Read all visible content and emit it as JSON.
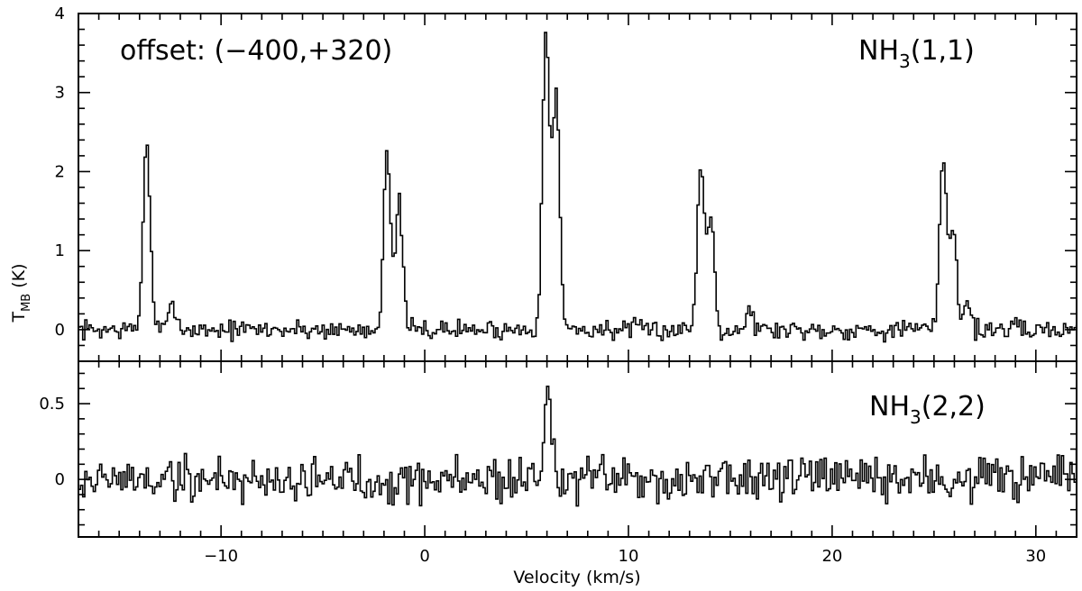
{
  "chart_data": [
    {
      "type": "line",
      "step": true,
      "panel": "top",
      "x_range": [
        -17,
        32
      ],
      "ylim": [
        -0.4,
        4.0
      ],
      "ylabel": "T",
      "ylabel_sub": "MB",
      "ylabel_unit": "(K)",
      "yticks": [
        0,
        1,
        2,
        3,
        4
      ],
      "ytick_labels": [
        "0",
        "1",
        "2",
        "3",
        "4"
      ],
      "annotations": {
        "offset": "offset: (−400,+320)",
        "line_main": "NH",
        "line_sub": "3",
        "line_quant": "(1,1)"
      },
      "noise_rms": 0.09,
      "peaks": [
        {
          "v": -13.7,
          "t": 2.4
        },
        {
          "v": -12.4,
          "t": 0.35
        },
        {
          "v": -1.9,
          "t": 2.3
        },
        {
          "v": -1.3,
          "t": 1.6
        },
        {
          "v": 5.9,
          "t": 3.85
        },
        {
          "v": 6.4,
          "t": 3.0
        },
        {
          "v": 13.5,
          "t": 2.1
        },
        {
          "v": 14.0,
          "t": 1.45
        },
        {
          "v": 15.9,
          "t": 0.25
        },
        {
          "v": 25.4,
          "t": 2.2
        },
        {
          "v": 25.9,
          "t": 1.3
        },
        {
          "v": 26.6,
          "t": 0.35
        }
      ]
    },
    {
      "type": "line",
      "step": true,
      "panel": "bottom",
      "x_range": [
        -17,
        32
      ],
      "ylim": [
        -0.38,
        0.78
      ],
      "xlabel": "Velocity (km/s)",
      "yticks": [
        0,
        0.5
      ],
      "ytick_labels": [
        "0",
        "0.5"
      ],
      "xticks": [
        -10,
        0,
        10,
        20,
        30
      ],
      "xtick_labels": [
        "−10",
        "0",
        "10",
        "20",
        "30"
      ],
      "annotations": {
        "line_main": "NH",
        "line_sub": "3",
        "line_quant": "(2,2)"
      },
      "noise_rms": 0.11,
      "peaks": [
        {
          "v": 6.0,
          "t": 0.65
        }
      ]
    }
  ]
}
